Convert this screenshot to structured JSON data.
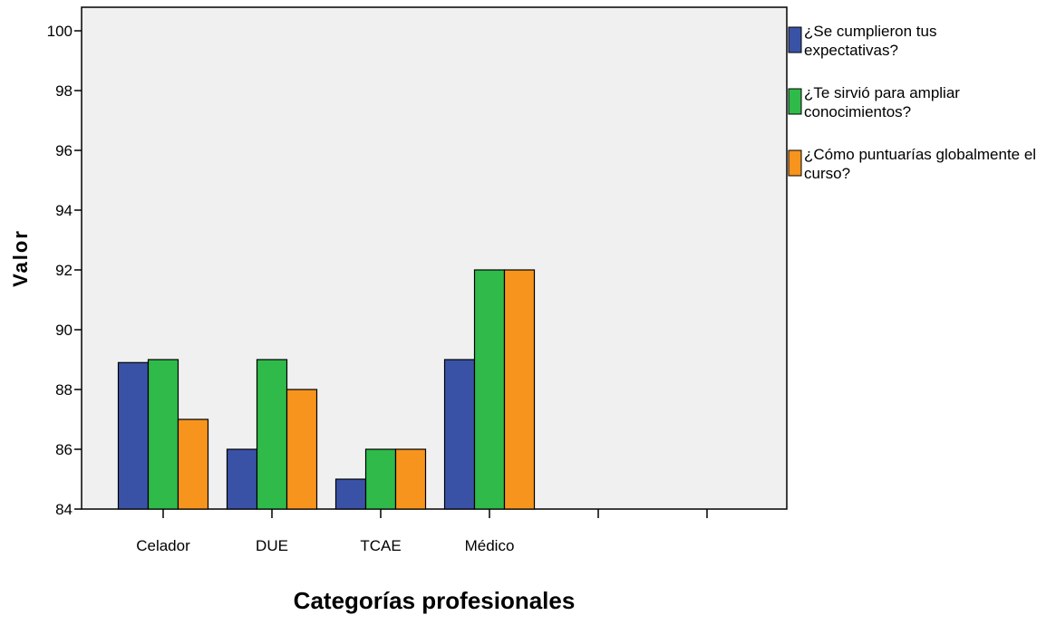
{
  "chart_data": {
    "type": "bar",
    "xlabel": "Categorías profesionales",
    "ylabel": "Valor",
    "ylim": [
      84,
      100
    ],
    "yticks": [
      "84",
      "86",
      "88",
      "90",
      "92",
      "94",
      "96",
      "98",
      "100"
    ],
    "categories": [
      "Celador",
      "DUE",
      "TCAE",
      "Médico",
      "",
      ""
    ],
    "grid": false,
    "legend_position": "right",
    "series": [
      {
        "name": "¿Se cumplieron tus expectativas?",
        "color": "#3a52a6",
        "values": [
          88.9,
          86,
          85,
          89,
          null,
          null
        ]
      },
      {
        "name": "¿Te sirvió para ampliar conocimientos?",
        "color": "#2fba4a",
        "values": [
          89,
          89,
          86,
          92,
          null,
          null
        ]
      },
      {
        "name": "¿Cómo puntuarías globalmente el curso?",
        "color": "#f7941d",
        "values": [
          87,
          88,
          86,
          92,
          null,
          null
        ]
      }
    ],
    "legend_lines": [
      [
        "¿Se cumplieron tus",
        "expectativas?"
      ],
      [
        "¿Te sirvió para ampliar",
        "conocimientos?"
      ],
      [
        "¿Cómo puntuarías globalmente el",
        "curso?"
      ]
    ],
    "plot_background": "#f0f0f0"
  }
}
